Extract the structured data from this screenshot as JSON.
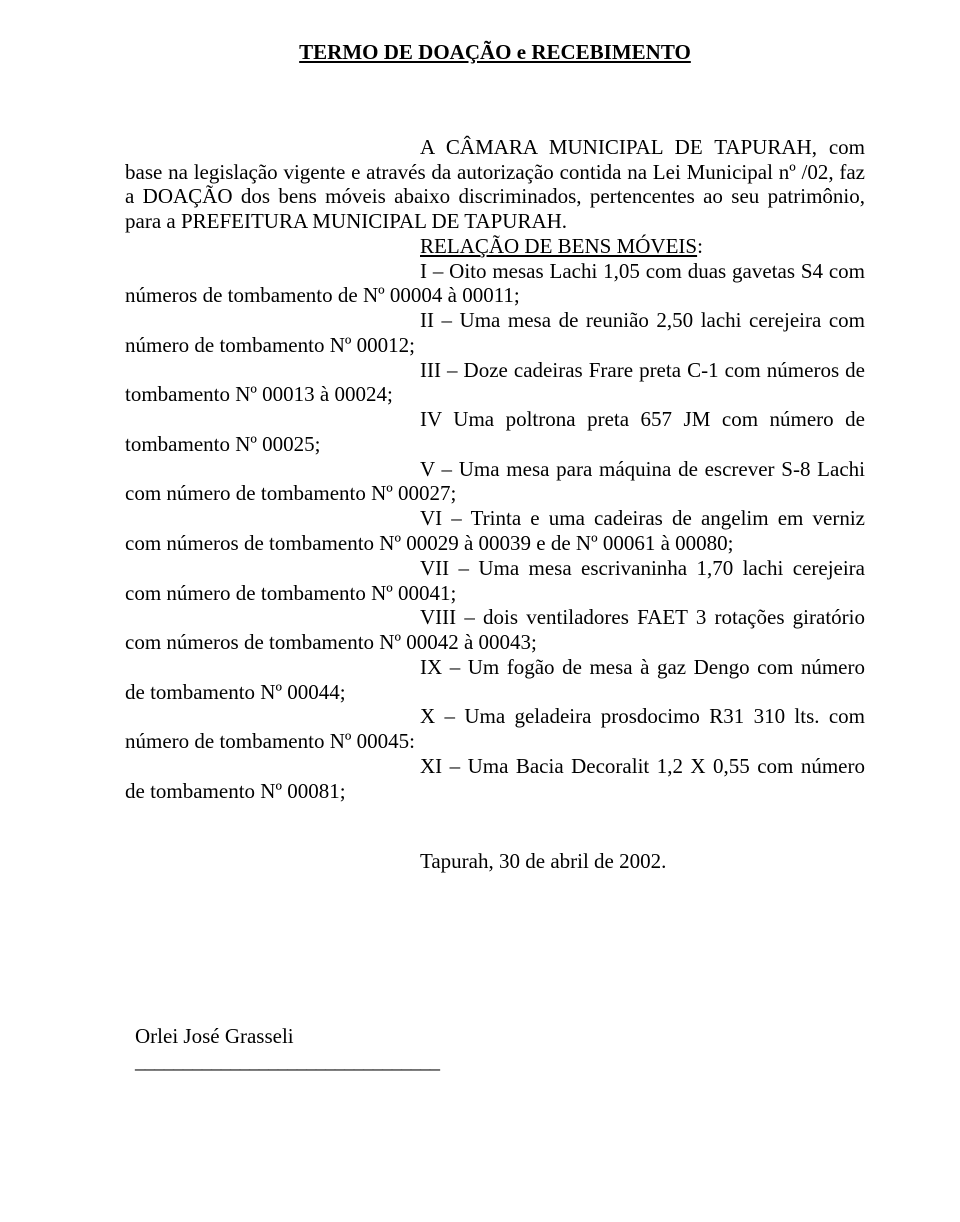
{
  "title": "TERMO DE DOAÇÃO e RECEBIMENTO",
  "intro": "A CÂMARA MUNICIPAL DE TAPURAH, com base na legislação vigente e através da autorização contida na Lei Municipal nº   /02, faz a DOAÇÃO dos bens móveis abaixo discriminados, pertencentes ao seu patrimônio, para a PREFEITURA MUNICIPAL DE TAPURAH.",
  "relacao_label": "RELAÇÃO DE BENS MÓVEIS",
  "items": {
    "i": "I – Oito mesas Lachi 1,05 com duas gavetas S4  com números de tombamento de Nº 00004 à 00011;",
    "ii": "II – Uma mesa de reunião 2,50 lachi cerejeira com número de tombamento Nº 00012;",
    "iii": "III – Doze cadeiras Frare preta C-1 com números de tombamento Nº 00013 à 00024;",
    "iv": "IV Uma poltrona preta 657 JM com número de tombamento Nº 00025;",
    "v": "V – Uma mesa para máquina de escrever S-8 Lachi com número de tombamento Nº  00027;",
    "vi": "VI – Trinta e uma cadeiras de angelim em verniz com números de tombamento Nº 00029 à 00039 e de Nº 00061 à 00080;",
    "vii": "VII – Uma mesa escrivaninha 1,70 lachi cerejeira com número de tombamento Nº 00041;",
    "viii": "VIII – dois ventiladores FAET 3 rotações giratório com números de tombamento Nº 00042 à 00043;",
    "ix": "IX – Um fogão de mesa à gaz Dengo com número de tombamento Nº 00044;",
    "x": "X – Uma geladeira prosdocimo R31 310 lts. com número de tombamento Nº 00045:",
    "xi": "XI – Uma Bacia Decoralit 1,2 X 0,55 com número de tombamento Nº 00081;"
  },
  "date": "Tapurah, 30 de abril de 2002.",
  "signer": "Orlei José Grasseli",
  "sig_line": "________________________________"
}
